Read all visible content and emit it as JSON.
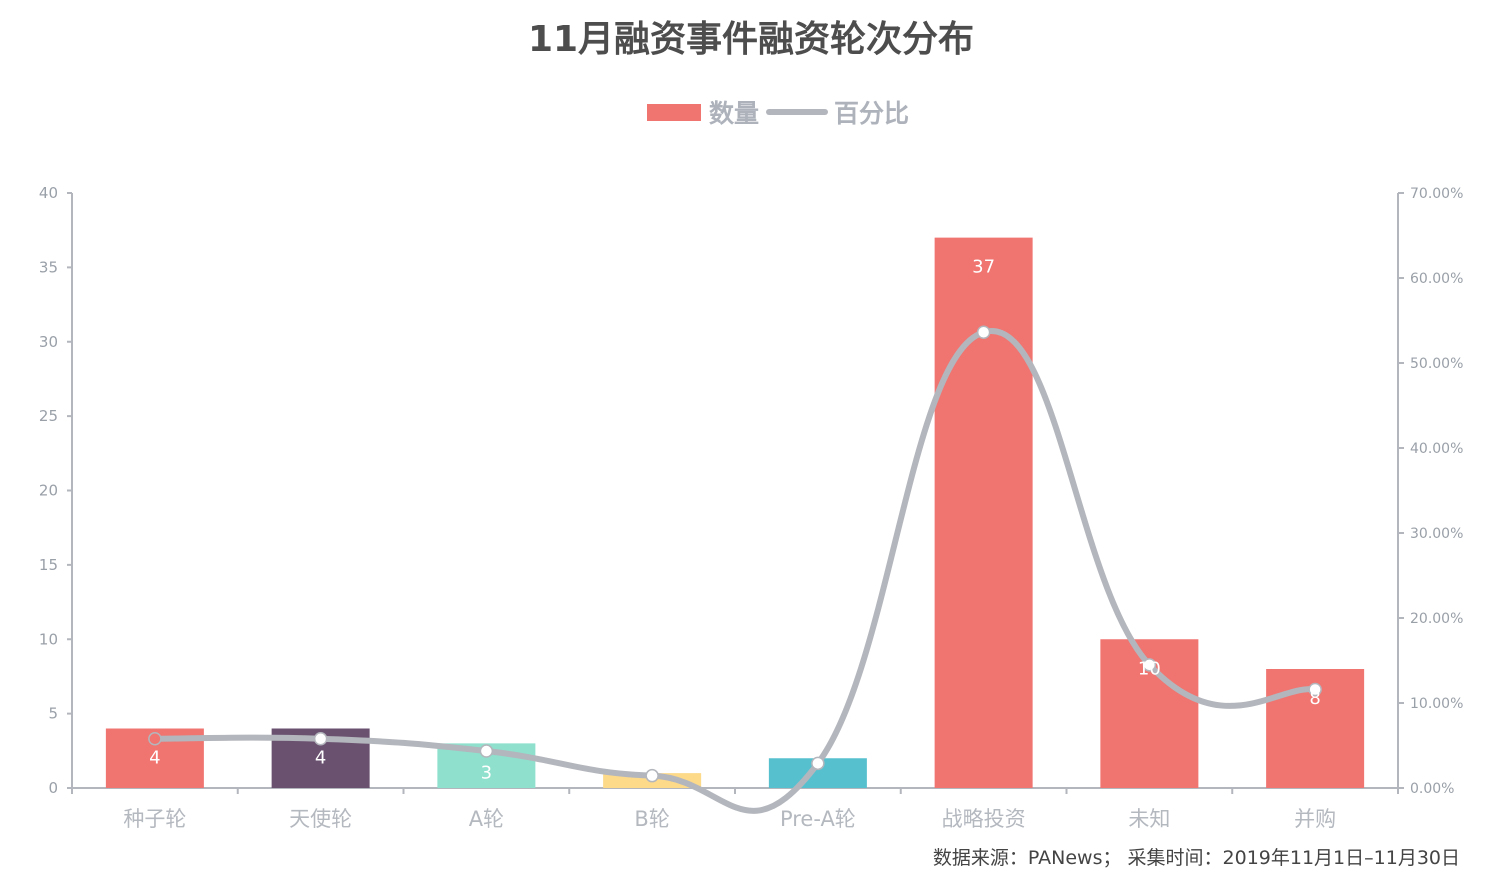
{
  "title": "11月融资事件融资轮次分布",
  "legend": {
    "bar_label": "数量",
    "line_label": "百分比"
  },
  "source": "数据来源：PANews； 采集时间：2019年11月1日–11月30日",
  "chart_data": {
    "type": "bar",
    "title": "11月融资事件融资轮次分布",
    "categories": [
      "种子轮",
      "天使轮",
      "A轮",
      "B轮",
      "Pre-A轮",
      "战略投资",
      "未知",
      "并购"
    ],
    "series": [
      {
        "name": "数量",
        "type": "bar",
        "values": [
          4,
          4,
          3,
          1,
          2,
          37,
          10,
          8
        ],
        "labels": [
          "4",
          "4",
          "3",
          "",
          "",
          "37",
          "10",
          "8"
        ],
        "colors": [
          "#f07470",
          "#6a5170",
          "#8fe0cd",
          "#fdd98a",
          "#56c0cf",
          "#f07470",
          "#f07470",
          "#f07470"
        ]
      },
      {
        "name": "百分比",
        "type": "line",
        "smooth": true,
        "values": [
          0.0579,
          0.0579,
          0.0435,
          0.0145,
          0.029,
          0.5362,
          0.1449,
          0.1159
        ],
        "color": "#b3b6bc"
      }
    ],
    "y_left": {
      "min": 0,
      "max": 40,
      "ticks": [
        "0",
        "5",
        "10",
        "15",
        "20",
        "25",
        "30",
        "35",
        "40"
      ]
    },
    "y_right": {
      "min": 0,
      "max": 0.7,
      "ticks": [
        "0.00%",
        "10.00%",
        "20.00%",
        "30.00%",
        "40.00%",
        "50.00%",
        "60.00%",
        "70.00%"
      ]
    },
    "grid": false,
    "legend_position": "top-center"
  },
  "colors": {
    "bar_primary": "#f07470",
    "line": "#b3b6bc",
    "axis": "#b3b6bc",
    "title": "#4d4d4d"
  }
}
